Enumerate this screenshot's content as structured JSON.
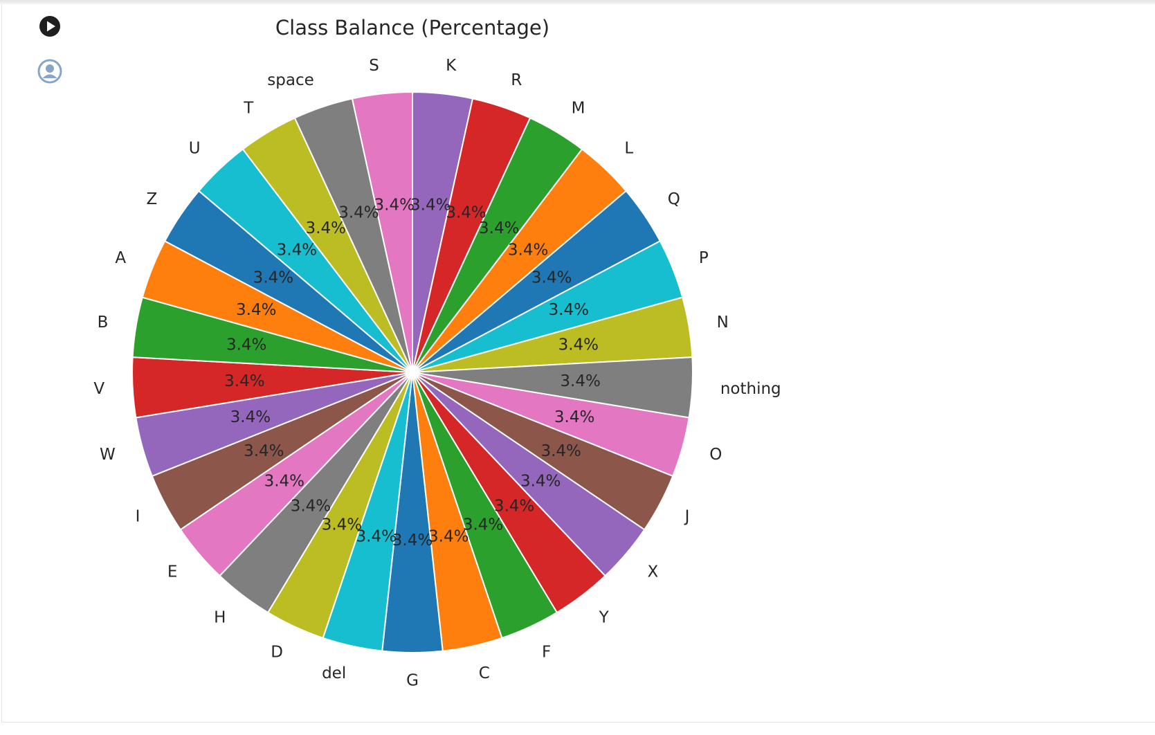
{
  "toolbar": {
    "run_icon": "play-circle-icon",
    "user_icon": "user-circle-icon"
  },
  "colors": {
    "title": "#262626",
    "slice_edge": "#ffffff",
    "run_icon": "#1f1f1f",
    "user_icon": "#8aa4c8"
  },
  "chart_data": {
    "type": "pie",
    "title": "Class Balance (Percentage)",
    "start_angle_deg": 90,
    "direction": "clockwise",
    "slice_colors": [
      "#9467bd",
      "#d62728",
      "#2ca02c",
      "#ff7f0e",
      "#1f77b4",
      "#17becf",
      "#bcbd22",
      "#7f7f7f",
      "#e377c2",
      "#8c564b"
    ],
    "categories": [
      "K",
      "R",
      "M",
      "L",
      "Q",
      "P",
      "N",
      "nothing",
      "O",
      "J",
      "X",
      "Y",
      "F",
      "C",
      "G",
      "del",
      "D",
      "H",
      "E",
      "I",
      "W",
      "V",
      "B",
      "A",
      "Z",
      "U",
      "T",
      "space",
      "S"
    ],
    "values": [
      3000,
      3000,
      3000,
      3000,
      3000,
      3000,
      3000,
      3000,
      3000,
      3000,
      3000,
      3000,
      3000,
      3000,
      3000,
      3000,
      3000,
      3000,
      3000,
      3000,
      3000,
      3000,
      3000,
      3000,
      3000,
      3000,
      3000,
      3000,
      3000
    ],
    "percent_labels": [
      "3.4%",
      "3.4%",
      "3.4%",
      "3.4%",
      "3.4%",
      "3.4%",
      "3.4%",
      "3.4%",
      "3.4%",
      "3.4%",
      "3.4%",
      "3.4%",
      "3.4%",
      "3.4%",
      "3.4%",
      "3.4%",
      "3.4%",
      "3.4%",
      "3.4%",
      "3.4%",
      "3.4%",
      "3.4%",
      "3.4%",
      "3.4%",
      "3.4%",
      "3.4%",
      "3.4%",
      "3.4%",
      "3.4%"
    ],
    "legend": "none"
  }
}
